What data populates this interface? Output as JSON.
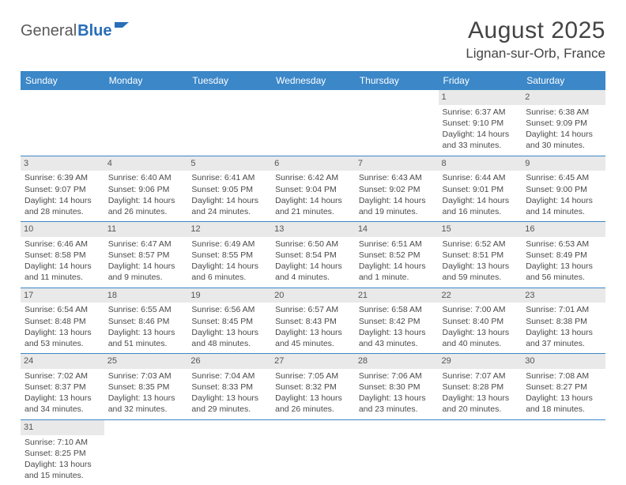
{
  "brand": {
    "part1": "General",
    "part2": "Blue"
  },
  "title": "August 2025",
  "location": "Lignan-sur-Orb, France",
  "colors": {
    "header_bg": "#3b87c8",
    "header_text": "#ffffff",
    "border": "#3b87c8",
    "daynum_bg": "#e9e9e9",
    "text": "#4a4a4a",
    "logo_gray": "#5a5a5a",
    "logo_blue": "#2a6eb8"
  },
  "day_headers": [
    "Sunday",
    "Monday",
    "Tuesday",
    "Wednesday",
    "Thursday",
    "Friday",
    "Saturday"
  ],
  "weeks": [
    [
      null,
      null,
      null,
      null,
      null,
      {
        "n": "1",
        "sr": "Sunrise: 6:37 AM",
        "ss": "Sunset: 9:10 PM",
        "d1": "Daylight: 14 hours",
        "d2": "and 33 minutes."
      },
      {
        "n": "2",
        "sr": "Sunrise: 6:38 AM",
        "ss": "Sunset: 9:09 PM",
        "d1": "Daylight: 14 hours",
        "d2": "and 30 minutes."
      }
    ],
    [
      {
        "n": "3",
        "sr": "Sunrise: 6:39 AM",
        "ss": "Sunset: 9:07 PM",
        "d1": "Daylight: 14 hours",
        "d2": "and 28 minutes."
      },
      {
        "n": "4",
        "sr": "Sunrise: 6:40 AM",
        "ss": "Sunset: 9:06 PM",
        "d1": "Daylight: 14 hours",
        "d2": "and 26 minutes."
      },
      {
        "n": "5",
        "sr": "Sunrise: 6:41 AM",
        "ss": "Sunset: 9:05 PM",
        "d1": "Daylight: 14 hours",
        "d2": "and 24 minutes."
      },
      {
        "n": "6",
        "sr": "Sunrise: 6:42 AM",
        "ss": "Sunset: 9:04 PM",
        "d1": "Daylight: 14 hours",
        "d2": "and 21 minutes."
      },
      {
        "n": "7",
        "sr": "Sunrise: 6:43 AM",
        "ss": "Sunset: 9:02 PM",
        "d1": "Daylight: 14 hours",
        "d2": "and 19 minutes."
      },
      {
        "n": "8",
        "sr": "Sunrise: 6:44 AM",
        "ss": "Sunset: 9:01 PM",
        "d1": "Daylight: 14 hours",
        "d2": "and 16 minutes."
      },
      {
        "n": "9",
        "sr": "Sunrise: 6:45 AM",
        "ss": "Sunset: 9:00 PM",
        "d1": "Daylight: 14 hours",
        "d2": "and 14 minutes."
      }
    ],
    [
      {
        "n": "10",
        "sr": "Sunrise: 6:46 AM",
        "ss": "Sunset: 8:58 PM",
        "d1": "Daylight: 14 hours",
        "d2": "and 11 minutes."
      },
      {
        "n": "11",
        "sr": "Sunrise: 6:47 AM",
        "ss": "Sunset: 8:57 PM",
        "d1": "Daylight: 14 hours",
        "d2": "and 9 minutes."
      },
      {
        "n": "12",
        "sr": "Sunrise: 6:49 AM",
        "ss": "Sunset: 8:55 PM",
        "d1": "Daylight: 14 hours",
        "d2": "and 6 minutes."
      },
      {
        "n": "13",
        "sr": "Sunrise: 6:50 AM",
        "ss": "Sunset: 8:54 PM",
        "d1": "Daylight: 14 hours",
        "d2": "and 4 minutes."
      },
      {
        "n": "14",
        "sr": "Sunrise: 6:51 AM",
        "ss": "Sunset: 8:52 PM",
        "d1": "Daylight: 14 hours",
        "d2": "and 1 minute."
      },
      {
        "n": "15",
        "sr": "Sunrise: 6:52 AM",
        "ss": "Sunset: 8:51 PM",
        "d1": "Daylight: 13 hours",
        "d2": "and 59 minutes."
      },
      {
        "n": "16",
        "sr": "Sunrise: 6:53 AM",
        "ss": "Sunset: 8:49 PM",
        "d1": "Daylight: 13 hours",
        "d2": "and 56 minutes."
      }
    ],
    [
      {
        "n": "17",
        "sr": "Sunrise: 6:54 AM",
        "ss": "Sunset: 8:48 PM",
        "d1": "Daylight: 13 hours",
        "d2": "and 53 minutes."
      },
      {
        "n": "18",
        "sr": "Sunrise: 6:55 AM",
        "ss": "Sunset: 8:46 PM",
        "d1": "Daylight: 13 hours",
        "d2": "and 51 minutes."
      },
      {
        "n": "19",
        "sr": "Sunrise: 6:56 AM",
        "ss": "Sunset: 8:45 PM",
        "d1": "Daylight: 13 hours",
        "d2": "and 48 minutes."
      },
      {
        "n": "20",
        "sr": "Sunrise: 6:57 AM",
        "ss": "Sunset: 8:43 PM",
        "d1": "Daylight: 13 hours",
        "d2": "and 45 minutes."
      },
      {
        "n": "21",
        "sr": "Sunrise: 6:58 AM",
        "ss": "Sunset: 8:42 PM",
        "d1": "Daylight: 13 hours",
        "d2": "and 43 minutes."
      },
      {
        "n": "22",
        "sr": "Sunrise: 7:00 AM",
        "ss": "Sunset: 8:40 PM",
        "d1": "Daylight: 13 hours",
        "d2": "and 40 minutes."
      },
      {
        "n": "23",
        "sr": "Sunrise: 7:01 AM",
        "ss": "Sunset: 8:38 PM",
        "d1": "Daylight: 13 hours",
        "d2": "and 37 minutes."
      }
    ],
    [
      {
        "n": "24",
        "sr": "Sunrise: 7:02 AM",
        "ss": "Sunset: 8:37 PM",
        "d1": "Daylight: 13 hours",
        "d2": "and 34 minutes."
      },
      {
        "n": "25",
        "sr": "Sunrise: 7:03 AM",
        "ss": "Sunset: 8:35 PM",
        "d1": "Daylight: 13 hours",
        "d2": "and 32 minutes."
      },
      {
        "n": "26",
        "sr": "Sunrise: 7:04 AM",
        "ss": "Sunset: 8:33 PM",
        "d1": "Daylight: 13 hours",
        "d2": "and 29 minutes."
      },
      {
        "n": "27",
        "sr": "Sunrise: 7:05 AM",
        "ss": "Sunset: 8:32 PM",
        "d1": "Daylight: 13 hours",
        "d2": "and 26 minutes."
      },
      {
        "n": "28",
        "sr": "Sunrise: 7:06 AM",
        "ss": "Sunset: 8:30 PM",
        "d1": "Daylight: 13 hours",
        "d2": "and 23 minutes."
      },
      {
        "n": "29",
        "sr": "Sunrise: 7:07 AM",
        "ss": "Sunset: 8:28 PM",
        "d1": "Daylight: 13 hours",
        "d2": "and 20 minutes."
      },
      {
        "n": "30",
        "sr": "Sunrise: 7:08 AM",
        "ss": "Sunset: 8:27 PM",
        "d1": "Daylight: 13 hours",
        "d2": "and 18 minutes."
      }
    ],
    [
      {
        "n": "31",
        "sr": "Sunrise: 7:10 AM",
        "ss": "Sunset: 8:25 PM",
        "d1": "Daylight: 13 hours",
        "d2": "and 15 minutes."
      },
      null,
      null,
      null,
      null,
      null,
      null
    ]
  ]
}
